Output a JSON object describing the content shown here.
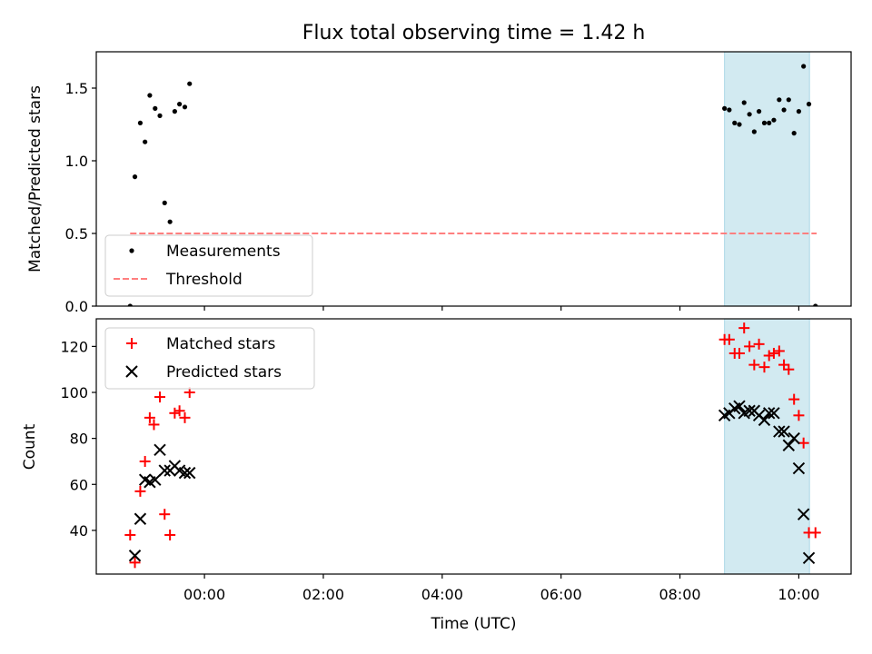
{
  "chart_data": [
    {
      "type": "scatter",
      "title": "Flux total observing time = 1.42 h",
      "ylabel": "Matched/Predicted stars",
      "xlim": [
        -1.82,
        10.88
      ],
      "ylim": [
        0.0,
        1.75
      ],
      "yticks": [
        {
          "value": 0.0,
          "label": "0.0"
        },
        {
          "value": 0.5,
          "label": "0.5"
        },
        {
          "value": 1.0,
          "label": "1.0"
        },
        {
          "value": 1.5,
          "label": "1.5"
        }
      ],
      "shaded_span": {
        "x0": 8.75,
        "x1": 10.18,
        "color": "#add8e6"
      },
      "threshold": {
        "name": "Threshold",
        "y": 0.5,
        "x0": -1.25,
        "x1": 10.3,
        "color": "#ff7f7f"
      },
      "legend": {
        "placement": "lower-left",
        "entries": [
          "Measurements",
          "Threshold"
        ]
      },
      "series": [
        {
          "name": "Measurements",
          "marker": "dot",
          "color": "#000000",
          "points": [
            [
              -1.25,
              0.0
            ],
            [
              -1.17,
              0.89
            ],
            [
              -1.08,
              1.26
            ],
            [
              -1.0,
              1.13
            ],
            [
              -0.92,
              1.45
            ],
            [
              -0.83,
              1.36
            ],
            [
              -0.75,
              1.31
            ],
            [
              -0.67,
              0.71
            ],
            [
              -0.58,
              0.58
            ],
            [
              -0.5,
              1.34
            ],
            [
              -0.42,
              1.39
            ],
            [
              -0.33,
              1.37
            ],
            [
              -0.25,
              1.53
            ],
            [
              8.75,
              1.36
            ],
            [
              8.83,
              1.35
            ],
            [
              8.92,
              1.26
            ],
            [
              9.0,
              1.25
            ],
            [
              9.08,
              1.4
            ],
            [
              9.17,
              1.32
            ],
            [
              9.25,
              1.2
            ],
            [
              9.33,
              1.34
            ],
            [
              9.42,
              1.26
            ],
            [
              9.5,
              1.26
            ],
            [
              9.58,
              1.28
            ],
            [
              9.67,
              1.42
            ],
            [
              9.75,
              1.35
            ],
            [
              9.83,
              1.42
            ],
            [
              9.92,
              1.19
            ],
            [
              10.0,
              1.34
            ],
            [
              10.08,
              1.65
            ],
            [
              10.17,
              1.39
            ],
            [
              10.28,
              0.0
            ]
          ]
        }
      ]
    },
    {
      "type": "scatter",
      "xlabel": "Time (UTC)",
      "ylabel": "Count",
      "xlim": [
        -1.82,
        10.88
      ],
      "ylim": [
        21,
        132
      ],
      "xticks": [
        {
          "value": 0,
          "label": "00:00"
        },
        {
          "value": 2,
          "label": "02:00"
        },
        {
          "value": 4,
          "label": "04:00"
        },
        {
          "value": 6,
          "label": "06:00"
        },
        {
          "value": 8,
          "label": "08:00"
        },
        {
          "value": 10,
          "label": "10:00"
        }
      ],
      "yticks": [
        {
          "value": 40,
          "label": "40"
        },
        {
          "value": 60,
          "label": "60"
        },
        {
          "value": 80,
          "label": "80"
        },
        {
          "value": 100,
          "label": "100"
        },
        {
          "value": 120,
          "label": "120"
        }
      ],
      "shaded_span": {
        "x0": 8.75,
        "x1": 10.18,
        "color": "#add8e6"
      },
      "legend": {
        "placement": "upper-left",
        "entries": [
          "Matched stars",
          "Predicted stars"
        ]
      },
      "series": [
        {
          "name": "Matched stars",
          "marker": "plus",
          "color": "#ff0000",
          "points": [
            [
              -1.25,
              38
            ],
            [
              -1.17,
              26
            ],
            [
              -1.08,
              57
            ],
            [
              -1.0,
              70
            ],
            [
              -0.92,
              89
            ],
            [
              -0.85,
              86
            ],
            [
              -0.75,
              98
            ],
            [
              -0.67,
              47
            ],
            [
              -0.58,
              38
            ],
            [
              -0.5,
              91
            ],
            [
              -0.42,
              92
            ],
            [
              -0.33,
              89
            ],
            [
              -0.25,
              100
            ],
            [
              8.75,
              123
            ],
            [
              8.83,
              123
            ],
            [
              8.92,
              117
            ],
            [
              9.0,
              117
            ],
            [
              9.08,
              128
            ],
            [
              9.17,
              120
            ],
            [
              9.25,
              112
            ],
            [
              9.33,
              121
            ],
            [
              9.42,
              111
            ],
            [
              9.5,
              116
            ],
            [
              9.58,
              117
            ],
            [
              9.67,
              118
            ],
            [
              9.75,
              112
            ],
            [
              9.83,
              110
            ],
            [
              9.92,
              97
            ],
            [
              10.0,
              90
            ],
            [
              10.08,
              78
            ],
            [
              10.17,
              39
            ],
            [
              10.28,
              39
            ]
          ]
        },
        {
          "name": "Predicted stars",
          "marker": "x",
          "color": "#000000",
          "points": [
            [
              -1.17,
              29
            ],
            [
              -1.08,
              45
            ],
            [
              -1.0,
              62
            ],
            [
              -0.92,
              61
            ],
            [
              -0.83,
              62
            ],
            [
              -0.75,
              75
            ],
            [
              -0.67,
              66
            ],
            [
              -0.58,
              66
            ],
            [
              -0.5,
              68
            ],
            [
              -0.42,
              66
            ],
            [
              -0.33,
              65
            ],
            [
              -0.25,
              65
            ],
            [
              8.75,
              90
            ],
            [
              8.83,
              91
            ],
            [
              8.92,
              93
            ],
            [
              9.0,
              94
            ],
            [
              9.08,
              91
            ],
            [
              9.17,
              92
            ],
            [
              9.25,
              92
            ],
            [
              9.33,
              90
            ],
            [
              9.42,
              88
            ],
            [
              9.5,
              91
            ],
            [
              9.58,
              91
            ],
            [
              9.67,
              83
            ],
            [
              9.75,
              83
            ],
            [
              9.83,
              77
            ],
            [
              9.92,
              80
            ],
            [
              10.0,
              67
            ],
            [
              10.08,
              47
            ],
            [
              10.17,
              28
            ]
          ]
        }
      ]
    }
  ]
}
